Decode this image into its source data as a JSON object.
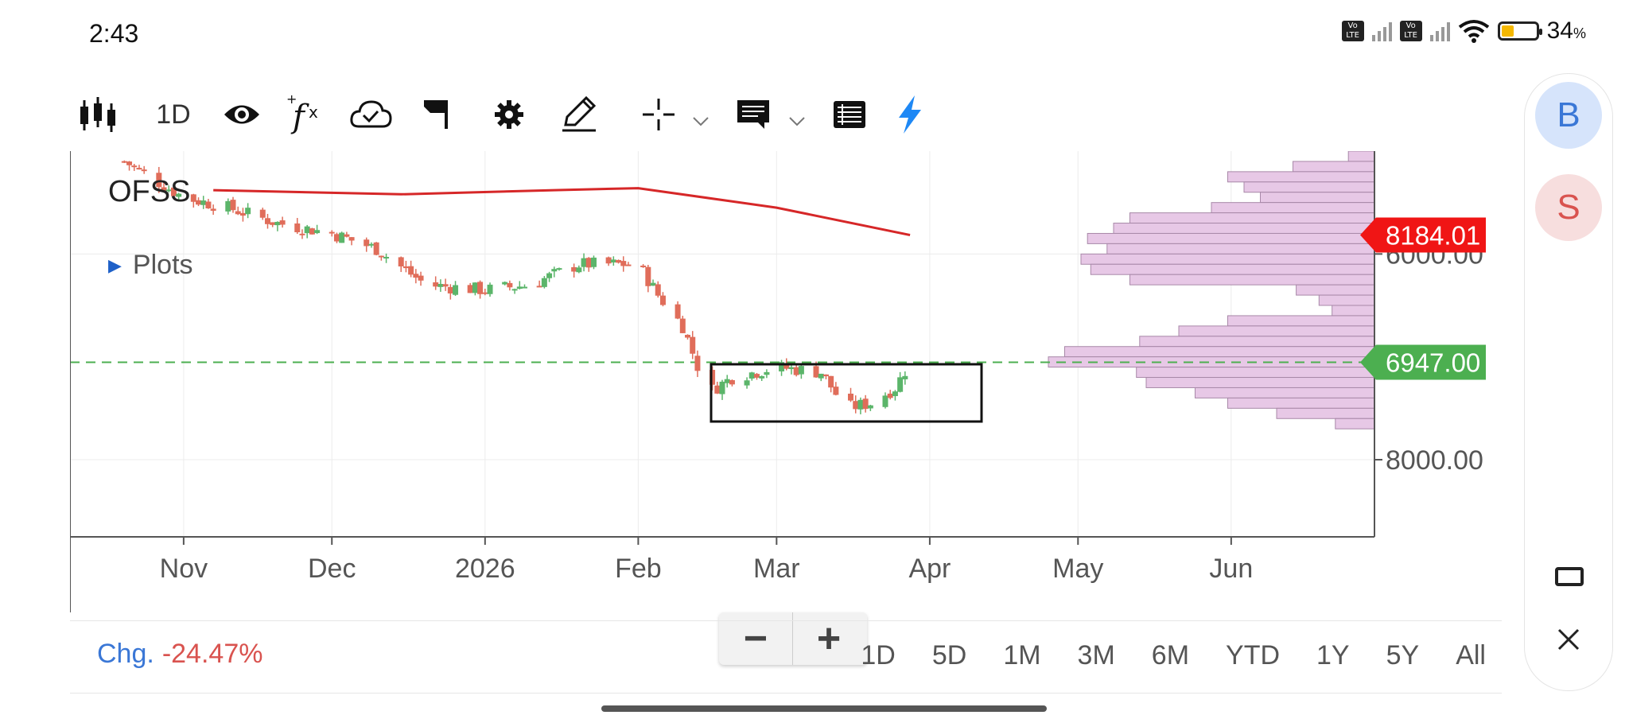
{
  "status": {
    "time": "2:43",
    "battery": "34",
    "battery_suffix": "%",
    "battery_level": 0.34,
    "volte": "Vo\nLTE"
  },
  "toolbar": {
    "interval": "1D",
    "icons": [
      "candlestick-icon",
      "eye-icon",
      "function-icon",
      "cloud-icon",
      "flag-icon",
      "gear-icon",
      "pencil-icon",
      "crosshair-icon",
      "comment-icon",
      "list-icon",
      "lightning-icon"
    ]
  },
  "chart": {
    "symbol": "OFSS",
    "plots_label": "Plots",
    "price_tags": {
      "ma_value": "8184.01",
      "last_price": "6947.00"
    },
    "y_tick_labels": [
      "8000.00",
      "6000.00"
    ],
    "x_tick_labels": [
      "Nov",
      "Dec",
      "2026",
      "Feb",
      "Mar",
      "Apr",
      "May",
      "Jun"
    ],
    "colors": {
      "up": "#5bb56a",
      "down": "#e06d5a",
      "ma": "#d62728",
      "last_tag": "#4caf50",
      "ma_tag": "#f01515",
      "profile": "#e7c8e6",
      "profile_border": "#a888a8"
    },
    "zoom": {
      "minus": "−",
      "plus": "+"
    }
  },
  "chart_data": {
    "type": "candlestick",
    "title": "OFSS",
    "ylim": [
      5250,
      9000
    ],
    "y_ticks": [
      6000,
      8000
    ],
    "moving_average_last": 8184.01,
    "last_price": 6947.0,
    "x_labels": [
      "Nov",
      "Dec",
      "2026",
      "Feb",
      "Mar",
      "Apr",
      "May",
      "Jun"
    ],
    "price_points": [
      [
        "2025-10-20",
        8900
      ],
      [
        "2025-11-01",
        8550
      ],
      [
        "2025-11-10",
        8450
      ],
      [
        "2025-11-20",
        8300
      ],
      [
        "2025-12-01",
        8200
      ],
      [
        "2025-12-10",
        8050
      ],
      [
        "2025-12-20",
        7700
      ],
      [
        "2026-01-01",
        7650
      ],
      [
        "2026-01-10",
        7700
      ],
      [
        "2026-01-20",
        7900
      ],
      [
        "2026-02-01",
        7900
      ],
      [
        "2026-02-05",
        7600
      ],
      [
        "2026-02-10",
        7300
      ],
      [
        "2026-02-15",
        6650
      ],
      [
        "2026-02-20",
        6800
      ],
      [
        "2026-03-01",
        6900
      ],
      [
        "2026-03-10",
        6850
      ],
      [
        "2026-03-15",
        6500
      ],
      [
        "2026-03-20",
        6550
      ],
      [
        "2026-03-25",
        6700
      ],
      [
        "2026-03-28",
        6947
      ]
    ],
    "moving_average": [
      [
        "2025-11-07",
        8620
      ],
      [
        "2025-12-15",
        8580
      ],
      [
        "2026-01-15",
        8620
      ],
      [
        "2026-02-01",
        8640
      ],
      [
        "2026-03-01",
        8450
      ],
      [
        "2026-03-28",
        8184
      ]
    ],
    "volume_profile": [
      {
        "price": 8950,
        "w": 0.08
      },
      {
        "price": 8850,
        "w": 0.25
      },
      {
        "price": 8750,
        "w": 0.45
      },
      {
        "price": 8650,
        "w": 0.4
      },
      {
        "price": 8550,
        "w": 0.35
      },
      {
        "price": 8450,
        "w": 0.5
      },
      {
        "price": 8350,
        "w": 0.75
      },
      {
        "price": 8250,
        "w": 0.8
      },
      {
        "price": 8150,
        "w": 0.88
      },
      {
        "price": 8050,
        "w": 0.82
      },
      {
        "price": 7950,
        "w": 0.9
      },
      {
        "price": 7850,
        "w": 0.87
      },
      {
        "price": 7750,
        "w": 0.75
      },
      {
        "price": 7650,
        "w": 0.24
      },
      {
        "price": 7550,
        "w": 0.17
      },
      {
        "price": 7450,
        "w": 0.13
      },
      {
        "price": 7350,
        "w": 0.45
      },
      {
        "price": 7250,
        "w": 0.6
      },
      {
        "price": 7150,
        "w": 0.72
      },
      {
        "price": 7050,
        "w": 0.95
      },
      {
        "price": 6950,
        "w": 1.0
      },
      {
        "price": 6850,
        "w": 0.73
      },
      {
        "price": 6750,
        "w": 0.7
      },
      {
        "price": 6650,
        "w": 0.55
      },
      {
        "price": 6550,
        "w": 0.45
      },
      {
        "price": 6450,
        "w": 0.3
      },
      {
        "price": 6350,
        "w": 0.12
      }
    ]
  },
  "bottom": {
    "chg_label": "Chg.",
    "chg_value": "-24.47%",
    "ranges": [
      "1D",
      "5D",
      "1M",
      "3M",
      "6M",
      "YTD",
      "1Y",
      "5Y",
      "All"
    ]
  },
  "sidebar": {
    "avatar_b": "B",
    "avatar_s": "S",
    "window_icon": "window-icon",
    "close_icon": "close-icon"
  }
}
